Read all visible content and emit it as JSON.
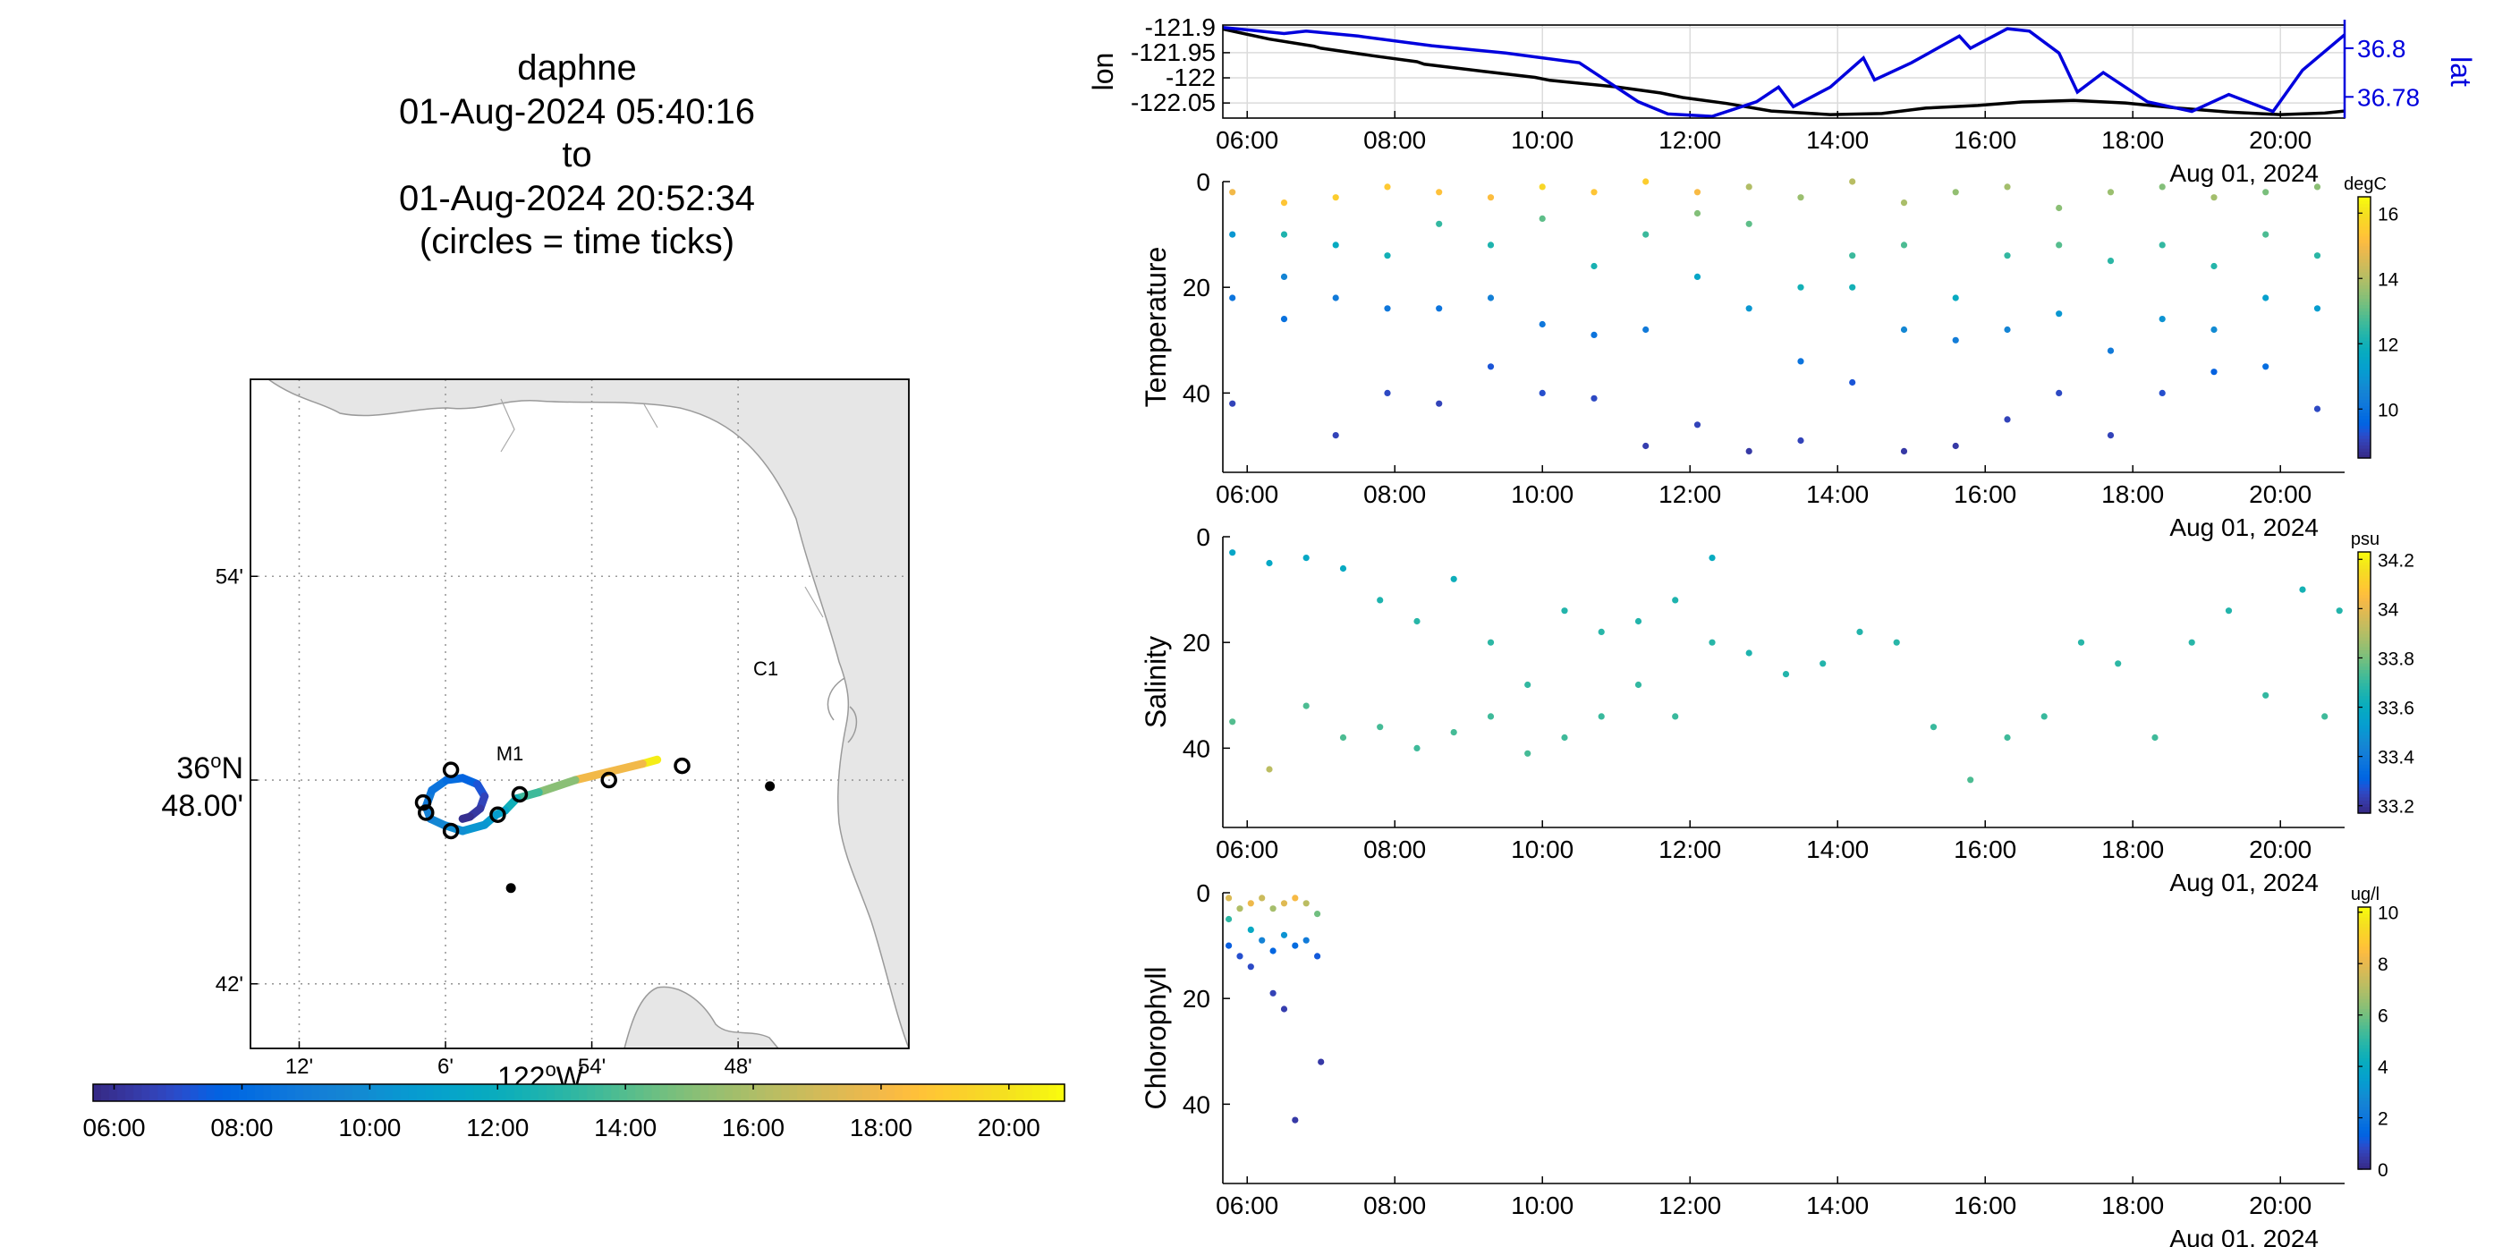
{
  "header": {
    "vehicle": "daphne",
    "start_time": "01-Aug-2024 05:40:16",
    "to_word": "to",
    "end_time": "01-Aug-2024 20:52:34",
    "note": "(circles = time ticks)"
  },
  "colors": {
    "lat_line": "#0000dd",
    "lon_line": "#000000",
    "land": "#e6e6e6",
    "track_start": "#3e26a8",
    "track_end": "#f9fb15"
  },
  "chart_data": [
    {
      "id": "map",
      "type": "scatter",
      "title": "",
      "x_ticks": [
        "12'",
        "6'",
        "54'",
        "48'"
      ],
      "x_axis_label": "122°W",
      "y_ticks": [
        "54'",
        "36°N 48.00'",
        "42'"
      ],
      "lon_range": [
        -122.2,
        -121.75
      ],
      "lat_range": [
        36.6683,
        36.9967
      ],
      "stations": [
        {
          "name": "C1",
          "lon": -121.845,
          "lat": 36.797
        },
        {
          "name": "M1",
          "lon": -122.022,
          "lat": 36.747
        }
      ],
      "track": [
        {
          "lon": -121.922,
          "lat": 36.81,
          "t": 20.87
        },
        {
          "lon": -121.932,
          "lat": 36.808,
          "t": 20.0
        },
        {
          "lon": -121.978,
          "lat": 36.8,
          "t": 16.0
        },
        {
          "lon": -122.003,
          "lat": 36.794,
          "t": 14.3
        },
        {
          "lon": -122.018,
          "lat": 36.791,
          "t": 12.8
        },
        {
          "lon": -122.026,
          "lat": 36.785,
          "t": 11.7
        },
        {
          "lon": -122.032,
          "lat": 36.783,
          "t": 11.0
        },
        {
          "lon": -122.04,
          "lat": 36.778,
          "t": 10.6
        },
        {
          "lon": -122.055,
          "lat": 36.775,
          "t": 10.2
        },
        {
          "lon": -122.068,
          "lat": 36.778,
          "t": 9.8
        },
        {
          "lon": -122.077,
          "lat": 36.781,
          "t": 9.5
        },
        {
          "lon": -122.08,
          "lat": 36.787,
          "t": 9.1
        },
        {
          "lon": -122.076,
          "lat": 36.795,
          "t": 8.7
        },
        {
          "lon": -122.066,
          "lat": 36.8,
          "t": 8.3
        },
        {
          "lon": -122.055,
          "lat": 36.801,
          "t": 7.9
        },
        {
          "lon": -122.045,
          "lat": 36.798,
          "t": 7.4
        },
        {
          "lon": -122.04,
          "lat": 36.792,
          "t": 6.9
        },
        {
          "lon": -122.043,
          "lat": 36.786,
          "t": 6.4
        },
        {
          "lon": -122.05,
          "lat": 36.782,
          "t": 6.0
        },
        {
          "lon": -122.055,
          "lat": 36.781,
          "t": 5.67
        }
      ],
      "time_ticks": [
        {
          "lon": -122.063,
          "lat": 36.805
        },
        {
          "lon": -122.082,
          "lat": 36.789
        },
        {
          "lon": -122.08,
          "lat": 36.784
        },
        {
          "lon": -122.063,
          "lat": 36.775
        },
        {
          "lon": -122.031,
          "lat": 36.783
        },
        {
          "lon": -122.016,
          "lat": 36.793
        },
        {
          "lon": -121.955,
          "lat": 36.8
        },
        {
          "lon": -121.905,
          "lat": 36.807
        }
      ]
    },
    {
      "id": "map-colorbar",
      "type": "heatmap",
      "tick_labels": [
        "06:00",
        "08:00",
        "10:00",
        "12:00",
        "14:00",
        "16:00",
        "18:00",
        "20:00"
      ],
      "range": [
        5.67,
        20.87
      ]
    },
    {
      "id": "lonlat",
      "type": "line",
      "x_range": [
        5.67,
        20.87
      ],
      "x_ticks": [
        "06:00",
        "08:00",
        "10:00",
        "12:00",
        "14:00",
        "16:00",
        "18:00",
        "20:00"
      ],
      "x_date_label": "Aug 01, 2024",
      "ylabel": "lon",
      "y2label": "lat",
      "y_ticks": [
        "-121.9",
        "-121.95",
        "-122",
        "-122.05"
      ],
      "y_range": [
        -122.08,
        -121.895
      ],
      "y2_ticks": [
        "36.8",
        "36.78"
      ],
      "y2_range": [
        36.7713,
        36.8095
      ],
      "series": [
        {
          "name": "lon",
          "axis": "left",
          "x": [
            5.67,
            6.3,
            6.9,
            7.0,
            7.7,
            8.3,
            8.4,
            9.2,
            9.9,
            10.1,
            11.0,
            11.6,
            11.9,
            12.5,
            13.1,
            13.9,
            14.6,
            15.2,
            15.9,
            16.5,
            17.2,
            17.9,
            18.6,
            19.3,
            20.0,
            20.6,
            20.87
          ],
          "y": [
            -121.903,
            -121.923,
            -121.937,
            -121.941,
            -121.956,
            -121.968,
            -121.973,
            -121.987,
            -121.999,
            -122.005,
            -122.018,
            -122.03,
            -122.039,
            -122.051,
            -122.066,
            -122.073,
            -122.071,
            -122.06,
            -122.055,
            -122.048,
            -122.045,
            -122.05,
            -122.06,
            -122.068,
            -122.073,
            -122.07,
            -122.066
          ]
        },
        {
          "name": "lat",
          "axis": "right",
          "x": [
            5.67,
            6.5,
            6.8,
            7.5,
            8.5,
            9.5,
            10.5,
            10.9,
            11.3,
            11.7,
            12.3,
            12.9,
            13.2,
            13.4,
            13.9,
            14.35,
            14.5,
            15.0,
            15.65,
            15.8,
            16.3,
            16.6,
            17.0,
            17.25,
            17.6,
            18.2,
            18.8,
            19.3,
            19.9,
            20.3,
            20.87
          ],
          "y": [
            36.8085,
            36.806,
            36.807,
            36.805,
            36.801,
            36.798,
            36.794,
            36.786,
            36.778,
            36.773,
            36.772,
            36.778,
            36.784,
            36.776,
            36.784,
            36.796,
            36.787,
            36.794,
            36.805,
            36.8,
            36.808,
            36.807,
            36.798,
            36.782,
            36.79,
            36.778,
            36.774,
            36.781,
            36.774,
            36.791,
            36.8055
          ]
        }
      ]
    },
    {
      "id": "temperature",
      "type": "scatter",
      "ylabel": "Temperature",
      "y_ticks": [
        "0",
        "20",
        "40"
      ],
      "y_range": [
        0,
        55
      ],
      "x_range": [
        5.67,
        20.87
      ],
      "x_ticks": [
        "06:00",
        "08:00",
        "10:00",
        "12:00",
        "14:00",
        "16:00",
        "18:00",
        "20:00"
      ],
      "x_date_label": "Aug 01, 2024",
      "colorbar": {
        "unit": "degC",
        "ticks": [
          "16",
          "14",
          "12",
          "10"
        ],
        "range": [
          8.5,
          16.5
        ]
      },
      "profiles": [
        [
          5.8,
          2,
          15.0
        ],
        [
          5.8,
          10,
          11.0
        ],
        [
          5.8,
          22,
          10.0
        ],
        [
          5.8,
          42,
          9.0
        ],
        [
          6.5,
          4,
          15.4
        ],
        [
          6.5,
          10,
          12.2
        ],
        [
          6.5,
          18,
          10.5
        ],
        [
          6.5,
          26,
          9.9
        ],
        [
          7.2,
          3,
          15.6
        ],
        [
          7.2,
          12,
          11.7
        ],
        [
          7.2,
          22,
          10.2
        ],
        [
          7.2,
          48,
          9.0
        ],
        [
          7.9,
          1,
          15.5
        ],
        [
          7.9,
          14,
          12.0
        ],
        [
          7.9,
          24,
          10.1
        ],
        [
          7.9,
          40,
          9.1
        ],
        [
          8.6,
          2,
          15.3
        ],
        [
          8.6,
          8,
          12.5
        ],
        [
          8.6,
          24,
          10.0
        ],
        [
          8.6,
          42,
          9.0
        ],
        [
          9.3,
          3,
          15.2
        ],
        [
          9.3,
          12,
          12.2
        ],
        [
          9.3,
          22,
          10.4
        ],
        [
          9.3,
          35,
          9.3
        ],
        [
          10.0,
          1,
          15.8
        ],
        [
          10.0,
          7,
          13.0
        ],
        [
          10.0,
          27,
          10.1
        ],
        [
          10.0,
          40,
          9.2
        ],
        [
          10.7,
          2,
          15.4
        ],
        [
          10.7,
          16,
          12.1
        ],
        [
          10.7,
          29,
          10.0
        ],
        [
          10.7,
          41,
          9.1
        ],
        [
          11.4,
          0,
          15.6
        ],
        [
          11.4,
          10,
          12.6
        ],
        [
          11.4,
          28,
          10.2
        ],
        [
          11.4,
          50,
          8.9
        ],
        [
          12.1,
          2,
          15.1
        ],
        [
          12.1,
          6,
          13.4
        ],
        [
          12.1,
          18,
          11.5
        ],
        [
          12.1,
          46,
          9.0
        ],
        [
          12.8,
          1,
          14.0
        ],
        [
          12.8,
          8,
          13.0
        ],
        [
          12.8,
          24,
          11.0
        ],
        [
          12.8,
          51,
          8.8
        ],
        [
          13.5,
          3,
          13.7
        ],
        [
          13.5,
          20,
          12.0
        ],
        [
          13.5,
          34,
          10.0
        ],
        [
          13.5,
          49,
          9.0
        ],
        [
          14.2,
          0,
          14.1
        ],
        [
          14.2,
          14,
          12.6
        ],
        [
          14.2,
          20,
          12.0
        ],
        [
          14.2,
          38,
          9.3
        ],
        [
          14.9,
          4,
          13.9
        ],
        [
          14.9,
          12,
          12.8
        ],
        [
          14.9,
          28,
          10.6
        ],
        [
          14.9,
          51,
          8.8
        ],
        [
          15.6,
          2,
          13.6
        ],
        [
          15.6,
          22,
          11.7
        ],
        [
          15.6,
          30,
          10.3
        ],
        [
          15.6,
          50,
          8.8
        ],
        [
          16.3,
          1,
          13.8
        ],
        [
          16.3,
          14,
          12.5
        ],
        [
          16.3,
          28,
          10.5
        ],
        [
          16.3,
          45,
          9.0
        ],
        [
          17.0,
          5,
          13.5
        ],
        [
          17.0,
          12,
          12.9
        ],
        [
          17.0,
          25,
          11.0
        ],
        [
          17.0,
          40,
          9.1
        ],
        [
          17.7,
          2,
          13.7
        ],
        [
          17.7,
          15,
          12.4
        ],
        [
          17.7,
          32,
          10.2
        ],
        [
          17.7,
          48,
          9.0
        ],
        [
          18.4,
          1,
          13.4
        ],
        [
          18.4,
          12,
          12.5
        ],
        [
          18.4,
          26,
          10.9
        ],
        [
          18.4,
          40,
          9.2
        ],
        [
          19.1,
          3,
          13.8
        ],
        [
          19.1,
          16,
          12.3
        ],
        [
          19.1,
          28,
          10.7
        ],
        [
          19.1,
          36,
          9.5
        ],
        [
          19.8,
          2,
          13.3
        ],
        [
          19.8,
          10,
          12.8
        ],
        [
          19.8,
          22,
          11.3
        ],
        [
          19.8,
          35,
          9.8
        ],
        [
          20.5,
          1,
          13.5
        ],
        [
          20.5,
          14,
          12.4
        ],
        [
          20.5,
          24,
          11.2
        ],
        [
          20.5,
          43,
          9.1
        ]
      ]
    },
    {
      "id": "salinity",
      "type": "scatter",
      "ylabel": "Salinity",
      "y_ticks": [
        "0",
        "20",
        "40"
      ],
      "y_range": [
        0,
        55
      ],
      "x_range": [
        5.67,
        20.87
      ],
      "x_ticks": [
        "06:00",
        "08:00",
        "10:00",
        "12:00",
        "14:00",
        "16:00",
        "18:00",
        "20:00"
      ],
      "x_date_label": "Aug 01, 2024",
      "colorbar": {
        "unit": "psu",
        "ticks": [
          "34.2",
          "34",
          "33.8",
          "33.6",
          "33.4",
          "33.2"
        ],
        "range": [
          33.17,
          34.23
        ]
      },
      "profiles": [
        [
          5.8,
          3,
          33.57
        ],
        [
          5.8,
          35,
          33.75
        ],
        [
          6.3,
          5,
          33.58
        ],
        [
          6.3,
          44,
          33.92
        ],
        [
          6.8,
          4,
          33.58
        ],
        [
          6.8,
          32,
          33.74
        ],
        [
          7.3,
          6,
          33.59
        ],
        [
          7.3,
          38,
          33.74
        ],
        [
          7.8,
          12,
          33.66
        ],
        [
          7.8,
          36,
          33.73
        ],
        [
          8.3,
          16,
          33.68
        ],
        [
          8.3,
          40,
          33.72
        ],
        [
          8.8,
          8,
          33.62
        ],
        [
          8.8,
          37,
          33.73
        ],
        [
          9.3,
          20,
          33.69
        ],
        [
          9.3,
          34,
          33.72
        ],
        [
          9.8,
          28,
          33.7
        ],
        [
          9.8,
          41,
          33.73
        ],
        [
          10.3,
          14,
          33.67
        ],
        [
          10.3,
          38,
          33.72
        ],
        [
          10.8,
          18,
          33.68
        ],
        [
          10.8,
          34,
          33.71
        ],
        [
          11.3,
          16,
          33.67
        ],
        [
          11.3,
          28,
          33.7
        ],
        [
          11.8,
          12,
          33.66
        ],
        [
          11.8,
          34,
          33.71
        ],
        [
          12.3,
          4,
          33.6
        ],
        [
          12.3,
          20,
          33.68
        ],
        [
          12.8,
          22,
          33.66
        ],
        [
          13.3,
          26,
          33.67
        ],
        [
          13.8,
          24,
          33.67
        ],
        [
          14.3,
          18,
          33.67
        ],
        [
          14.8,
          20,
          33.68
        ],
        [
          15.3,
          36,
          33.71
        ],
        [
          15.8,
          46,
          33.74
        ],
        [
          16.3,
          38,
          33.72
        ],
        [
          16.8,
          34,
          33.71
        ],
        [
          17.3,
          20,
          33.68
        ],
        [
          17.8,
          24,
          33.69
        ],
        [
          18.3,
          38,
          33.72
        ],
        [
          18.8,
          20,
          33.68
        ],
        [
          19.3,
          14,
          33.67
        ],
        [
          19.8,
          30,
          33.7
        ],
        [
          20.3,
          10,
          33.64
        ],
        [
          20.6,
          34,
          33.72
        ],
        [
          20.8,
          14,
          33.67
        ]
      ]
    },
    {
      "id": "chlorophyll",
      "type": "scatter",
      "ylabel": "Chlorophyll",
      "y_ticks": [
        "0",
        "20",
        "40"
      ],
      "y_range": [
        0,
        55
      ],
      "x_range": [
        5.67,
        20.87
      ],
      "x_ticks": [
        "06:00",
        "08:00",
        "10:00",
        "12:00",
        "14:00",
        "16:00",
        "18:00",
        "20:00"
      ],
      "x_date_label": "Aug 01, 2024",
      "colorbar": {
        "unit": "ug/l",
        "ticks": [
          "10",
          "8",
          "6",
          "4",
          "2",
          "0"
        ],
        "range": [
          0,
          10.2
        ]
      },
      "profiles": [
        [
          5.75,
          1,
          7.8
        ],
        [
          5.75,
          5,
          5.0
        ],
        [
          5.75,
          10,
          1.2
        ],
        [
          5.9,
          3,
          7.0
        ],
        [
          5.9,
          12,
          0.9
        ],
        [
          6.05,
          2,
          8.2
        ],
        [
          6.05,
          7,
          4.0
        ],
        [
          6.05,
          14,
          0.8
        ],
        [
          6.2,
          1,
          7.5
        ],
        [
          6.2,
          9,
          2.5
        ],
        [
          6.35,
          3,
          6.8
        ],
        [
          6.35,
          11,
          1.4
        ],
        [
          6.35,
          19,
          0.6
        ],
        [
          6.5,
          2,
          7.9
        ],
        [
          6.5,
          8,
          3.1
        ],
        [
          6.5,
          22,
          0.5
        ],
        [
          6.65,
          1,
          8.4
        ],
        [
          6.65,
          10,
          1.6
        ],
        [
          6.65,
          43,
          0.4
        ],
        [
          6.8,
          2,
          7.2
        ],
        [
          6.8,
          9,
          2.2
        ],
        [
          6.95,
          4,
          6.0
        ],
        [
          6.95,
          12,
          1.1
        ],
        [
          7.0,
          32,
          0.4
        ]
      ]
    }
  ]
}
